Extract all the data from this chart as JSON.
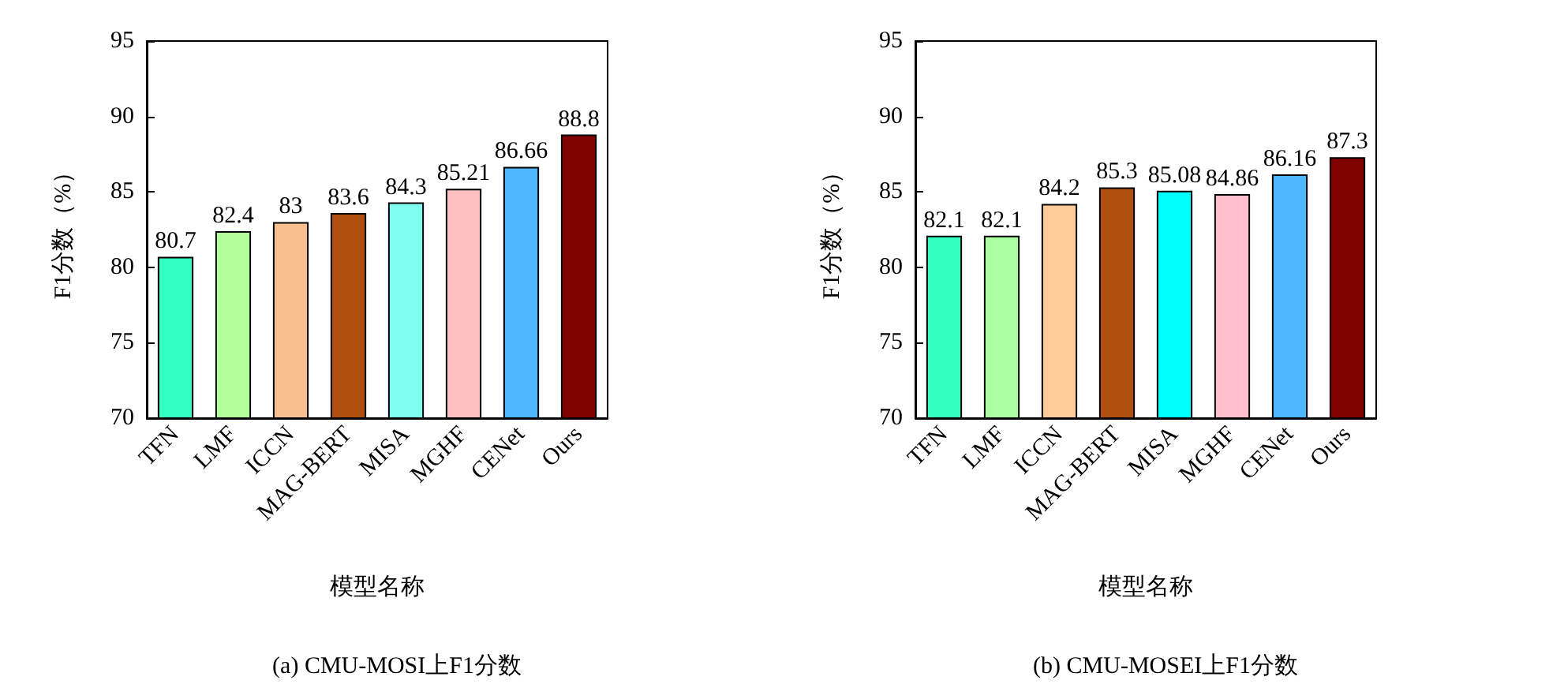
{
  "chart_data": [
    {
      "type": "bar",
      "title": "(a) CMU-MOSI上F1分数",
      "xlabel": "模型名称",
      "ylabel": "F1分数（%）",
      "categories": [
        "TFN",
        "LMF",
        "ICCN",
        "MAG-BERT",
        "MISA",
        "MGHF",
        "CENet",
        "Ours"
      ],
      "values": [
        80.7,
        82.4,
        83,
        83.6,
        84.3,
        85.21,
        86.66,
        88.8
      ],
      "colors": [
        "#33ffc4",
        "#b3ff99",
        "#f9c08f",
        "#b05010",
        "#80fff0",
        "#ffc0c0",
        "#4db8ff",
        "#800000"
      ],
      "ylim": [
        70,
        95
      ],
      "yticks": [
        70,
        75,
        80,
        85,
        90,
        95
      ],
      "data_labels": true
    },
    {
      "type": "bar",
      "title": "(b) CMU-MOSEI上F1分数",
      "xlabel": "模型名称",
      "ylabel": "F1分数（%）",
      "categories": [
        "TFN",
        "LMF",
        "ICCN",
        "MAG-BERT",
        "MISA",
        "MGHF",
        "CENet",
        "Ours"
      ],
      "values": [
        82.1,
        82.1,
        84.2,
        85.3,
        85.08,
        84.86,
        86.16,
        87.3
      ],
      "colors": [
        "#33ffc0",
        "#aaffa0",
        "#ffcc99",
        "#b05010",
        "#00ffff",
        "#ffc0cb",
        "#4db8ff",
        "#800000"
      ],
      "ylim": [
        70,
        95
      ],
      "yticks": [
        70,
        75,
        80,
        85,
        90,
        95
      ],
      "data_labels": true
    }
  ]
}
